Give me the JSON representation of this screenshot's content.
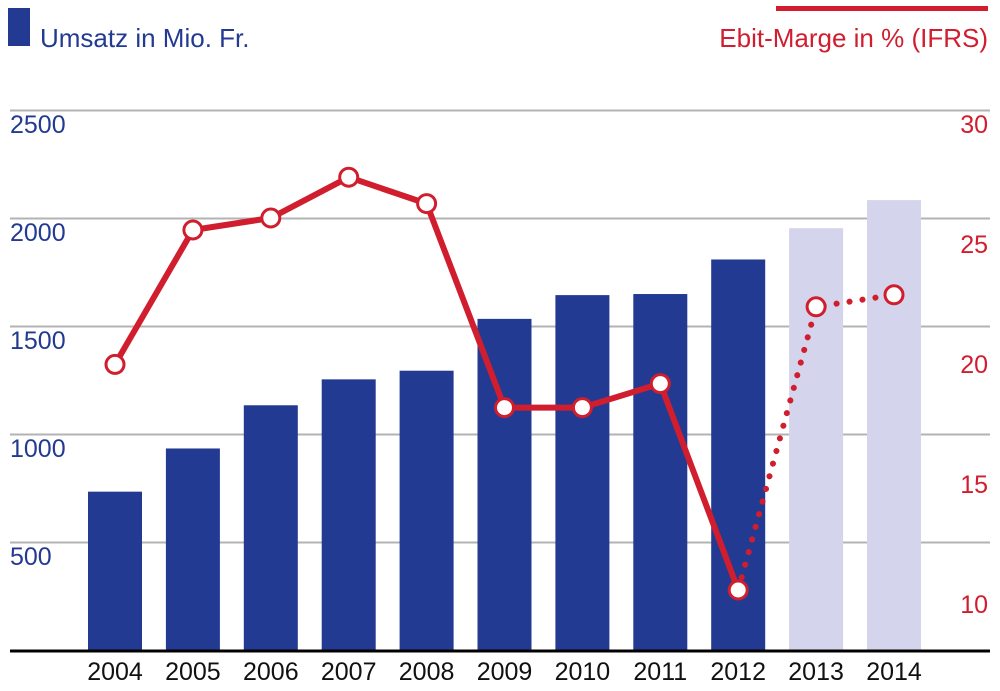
{
  "chart_data": {
    "type": "bar+line",
    "categories": [
      "2004",
      "2005",
      "2006",
      "2007",
      "2008",
      "2009",
      "2010",
      "2011",
      "2012",
      "2013",
      "2014"
    ],
    "series": [
      {
        "name": "Umsatz in Mio. Fr.",
        "kind": "bar",
        "axis": "left",
        "values": [
          733,
          933,
          1133,
          1253,
          1293,
          1533,
          1643,
          1648,
          1808,
          1953,
          2083
        ],
        "forecast_from_index": 9,
        "color": "#233a92",
        "forecast_color": "#d4d5ec"
      },
      {
        "name": "Ebit-Marge in % (IFRS)",
        "kind": "line",
        "axis": "right",
        "values": [
          19.4,
          25.0,
          25.5,
          27.2,
          26.1,
          17.6,
          17.6,
          18.6,
          10.0,
          21.8,
          22.3
        ],
        "forecast_from_index": 8,
        "color": "#d01e2e"
      }
    ],
    "y_left": {
      "min": 0,
      "max": 2500,
      "ticks": [
        "500",
        "1000",
        "1500",
        "2000",
        "2500"
      ],
      "color": "#233a92"
    },
    "y_right": {
      "min": 7.5,
      "max": 30,
      "ticks": [
        "10",
        "15",
        "20",
        "25",
        "30"
      ],
      "color": "#d01e2e"
    },
    "legend": {
      "bar_label": "Umsatz in Mio. Fr.",
      "line_label": "Ebit-Marge in % (IFRS)"
    },
    "grid": true,
    "grid_color": "#b3b3b3",
    "axis_color": "#000000"
  }
}
